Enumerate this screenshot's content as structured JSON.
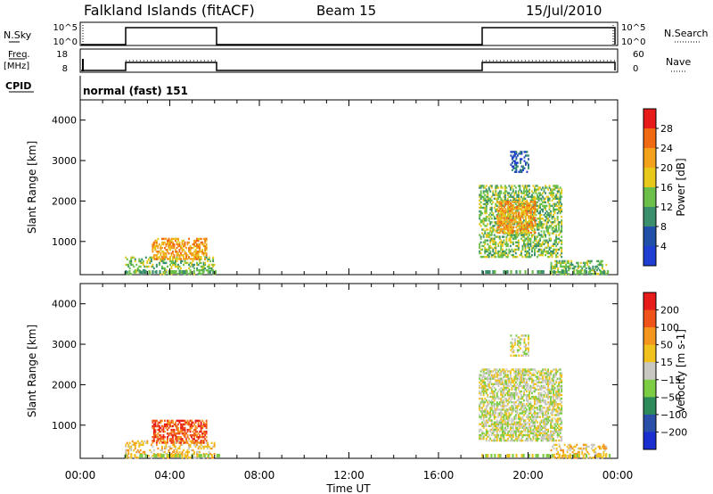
{
  "header": {
    "station": "Falkland Islands (fitACF)",
    "beam": "Beam 15",
    "date": "15/Jul/2010"
  },
  "strip": {
    "nsky_label": "N.Sky",
    "nsky_ticks": [
      "10^5",
      "10^0"
    ],
    "nsearch_label": "N.Search",
    "freq_label": "Freq.",
    "freq_unit": "[MHz]",
    "freq_ticks": [
      "18",
      "8"
    ],
    "nave_label": "Nave",
    "nave_ticks": [
      "60",
      "0"
    ],
    "cpid_label": "CPID",
    "cpid_value": "normal (fast) 151"
  },
  "colors": {
    "power": [
      "#1f3fd2",
      "#2050a8",
      "#3a8f6c",
      "#6cc04a",
      "#e7c81b",
      "#f4a11c",
      "#f06a14",
      "#e81b1b"
    ],
    "velocity": [
      "#1b2fd0",
      "#2a4fa8",
      "#2d8a5a",
      "#7ccd43",
      "#c8c8c0",
      "#f1c21e",
      "#f4961d",
      "#f0531a",
      "#e81b1b"
    ]
  },
  "chart_data": [
    {
      "type": "heatmap",
      "ylabel": "Slant Range [km]",
      "xlabel": "Time UT",
      "ylim": [
        180,
        4500
      ],
      "yticks": [
        1000,
        2000,
        3000,
        4000
      ],
      "xlim": [
        0,
        24
      ],
      "xticks": [
        "00:00",
        "04:00",
        "08:00",
        "12:00",
        "16:00",
        "20:00",
        "00:00"
      ],
      "colorbar": {
        "label": "Power [dB]",
        "ticks": [
          "28",
          "24",
          "20",
          "16",
          "12",
          "8",
          "4"
        ]
      },
      "regions": [
        {
          "t0": 2.0,
          "t1": 6.0,
          "r0": 180,
          "r1": 600,
          "level": 3,
          "density": 0.35
        },
        {
          "t0": 3.2,
          "t1": 5.6,
          "r0": 550,
          "r1": 1050,
          "level": 5,
          "density": 0.55
        },
        {
          "t0": 17.8,
          "t1": 21.5,
          "r0": 600,
          "r1": 2400,
          "level": 3,
          "density": 0.5
        },
        {
          "t0": 18.6,
          "t1": 20.3,
          "r0": 1200,
          "r1": 2000,
          "level": 5,
          "density": 0.6
        },
        {
          "t0": 19.2,
          "t1": 20.0,
          "r0": 2700,
          "r1": 3200,
          "level": 1,
          "density": 0.4
        },
        {
          "t0": 21.0,
          "t1": 23.5,
          "r0": 180,
          "r1": 500,
          "level": 3,
          "density": 0.4
        }
      ]
    },
    {
      "type": "heatmap",
      "ylabel": "Slant Range [km]",
      "xlabel": "Time UT",
      "ylim": [
        180,
        4500
      ],
      "yticks": [
        1000,
        2000,
        3000,
        4000
      ],
      "xlim": [
        0,
        24
      ],
      "xticks": [
        "00:00",
        "04:00",
        "08:00",
        "12:00",
        "16:00",
        "20:00",
        "00:00"
      ],
      "colorbar": {
        "label": "Velocity [m s-1]",
        "ticks": [
          "200",
          "100",
          "50",
          "15",
          "-15",
          "-50",
          "-100",
          "-200"
        ]
      },
      "regions": [
        {
          "t0": 2.0,
          "t1": 6.0,
          "r0": 180,
          "r1": 600,
          "level": 5,
          "density": 0.35
        },
        {
          "t0": 3.2,
          "t1": 5.6,
          "r0": 550,
          "r1": 1100,
          "level": 7,
          "density": 0.55
        },
        {
          "t0": 17.8,
          "t1": 21.5,
          "r0": 600,
          "r1": 2400,
          "level": 4,
          "density": 0.6
        },
        {
          "t0": 19.2,
          "t1": 20.0,
          "r0": 2700,
          "r1": 3200,
          "level": 4,
          "density": 0.4
        },
        {
          "t0": 21.0,
          "t1": 23.5,
          "r0": 180,
          "r1": 500,
          "level": 5,
          "density": 0.4
        }
      ]
    }
  ]
}
